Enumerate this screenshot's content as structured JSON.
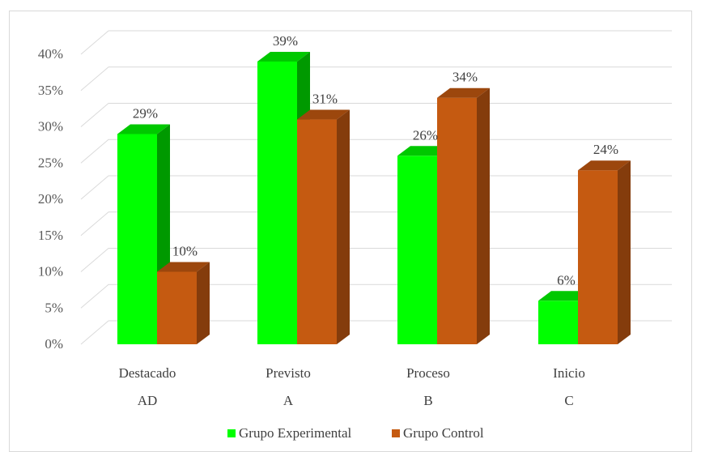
{
  "chart_data": {
    "type": "bar",
    "categories": [
      "Destacado",
      "Previsto",
      "Proceso",
      "Inicio"
    ],
    "category_codes": [
      "AD",
      "A",
      "B",
      "C"
    ],
    "series": [
      {
        "name": "Grupo Experimental",
        "values": [
          29,
          39,
          26,
          6
        ],
        "labels": [
          "29%",
          "39%",
          "26%",
          "6%"
        ],
        "color": "#00ff00"
      },
      {
        "name": "Grupo Control",
        "values": [
          10,
          31,
          34,
          24
        ],
        "labels": [
          "10%",
          "31%",
          "34%",
          "24%"
        ],
        "color": "#c55a11"
      }
    ],
    "y_ticks": [
      "0%",
      "5%",
      "10%",
      "15%",
      "20%",
      "25%",
      "30%",
      "35%",
      "40%"
    ],
    "ylim": [
      0,
      40
    ],
    "grid": true,
    "style": "3d-clustered-column",
    "legend_position": "bottom"
  }
}
